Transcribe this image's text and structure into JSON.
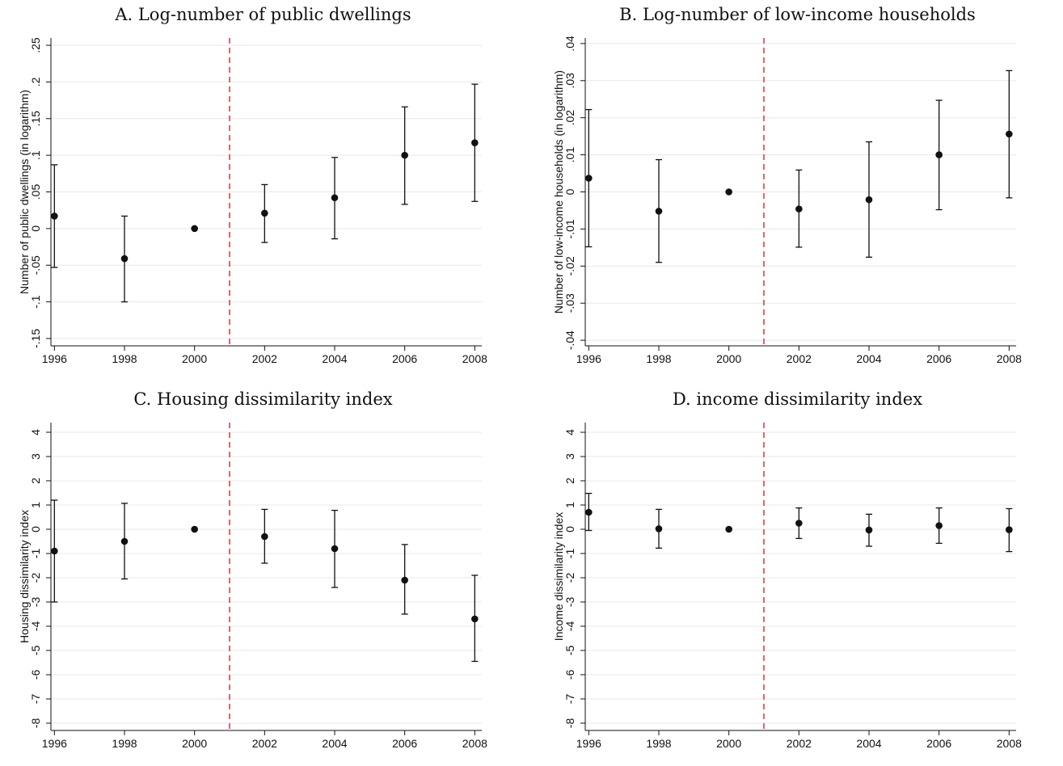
{
  "chart_data": [
    {
      "type": "scatter",
      "title": "A. Log-number of public dwellings",
      "ylabel": "Number of public dwellings (in logarithm)",
      "x": [
        1996,
        1998,
        2000,
        2002,
        2004,
        2006,
        2008
      ],
      "y": [
        0.017,
        -0.041,
        0.0,
        0.021,
        0.042,
        0.1,
        0.117
      ],
      "ci_low": [
        -0.053,
        -0.1,
        null,
        -0.019,
        -0.014,
        0.033,
        0.037
      ],
      "ci_high": [
        0.087,
        0.017,
        null,
        0.06,
        0.097,
        0.166,
        0.197
      ],
      "yticks": [
        0.25,
        0.2,
        0.15,
        0.1,
        0.05,
        0,
        -0.05,
        -0.1,
        -0.15
      ],
      "ytick_labels": [
        ".25",
        ".2",
        ".15",
        ".1",
        ".05",
        "0",
        "-.05",
        "-.1",
        "-.15"
      ],
      "xticks": [
        1996,
        1998,
        2000,
        2002,
        2004,
        2006,
        2008
      ],
      "ylim": [
        -0.16,
        0.26
      ],
      "xlim": [
        1995.9,
        2008.2
      ],
      "reference_line_x": 2001,
      "grid": true
    },
    {
      "type": "scatter",
      "title": "B. Log-number of low-income households",
      "ylabel": "Number of low-income households (in logarithm)",
      "x": [
        1996,
        1998,
        2000,
        2002,
        2004,
        2006,
        2008
      ],
      "y": [
        0.0037,
        -0.0052,
        0.0,
        -0.0046,
        -0.0021,
        0.01,
        0.0156
      ],
      "ci_low": [
        -0.0148,
        -0.019,
        null,
        -0.0149,
        -0.0176,
        -0.0048,
        -0.0016
      ],
      "ci_high": [
        0.0222,
        0.0087,
        null,
        0.0059,
        0.0135,
        0.0247,
        0.0327
      ],
      "yticks": [
        0.04,
        0.03,
        0.02,
        0.01,
        0,
        -0.01,
        -0.02,
        -0.03,
        -0.04
      ],
      "ytick_labels": [
        ".04",
        ".03",
        ".02",
        ".01",
        "0",
        "-.01",
        "-.02",
        "-.03",
        "-.04"
      ],
      "xticks": [
        1996,
        1998,
        2000,
        2002,
        2004,
        2006,
        2008
      ],
      "ylim": [
        -0.0415,
        0.0415
      ],
      "xlim": [
        1995.9,
        2008.2
      ],
      "reference_line_x": 2001,
      "grid": true
    },
    {
      "type": "scatter",
      "title": "C. Housing dissimilarity index",
      "ylabel": "Housing dissimilarity index",
      "x": [
        1996,
        1998,
        2000,
        2002,
        2004,
        2006,
        2008
      ],
      "y": [
        -0.9,
        -0.5,
        0.0,
        -0.3,
        -0.8,
        -2.1,
        -3.7
      ],
      "ci_low": [
        -3.0,
        -2.05,
        null,
        -1.4,
        -2.4,
        -3.5,
        -5.45
      ],
      "ci_high": [
        1.2,
        1.07,
        null,
        0.82,
        0.78,
        -0.63,
        -1.9
      ],
      "yticks": [
        4,
        3,
        2,
        1,
        0,
        -1,
        -2,
        -3,
        -4,
        -5,
        -6,
        -7,
        -8
      ],
      "ytick_labels": [
        "4",
        "3",
        "2",
        "1",
        "0",
        "-1",
        "-2",
        "-3",
        "-4",
        "-5",
        "-6",
        "-7",
        "-8"
      ],
      "xticks": [
        1996,
        1998,
        2000,
        2002,
        2004,
        2006,
        2008
      ],
      "ylim": [
        -8.3,
        4.4
      ],
      "xlim": [
        1995.9,
        2008.2
      ],
      "reference_line_x": 2001,
      "grid": true
    },
    {
      "type": "scatter",
      "title": "D. income dissimilarity index",
      "ylabel": "Income dissimilarity index",
      "x": [
        1996,
        1998,
        2000,
        2002,
        2004,
        2006,
        2008
      ],
      "y": [
        0.7,
        0.02,
        0.0,
        0.25,
        -0.03,
        0.15,
        -0.02
      ],
      "ci_low": [
        -0.05,
        -0.78,
        null,
        -0.38,
        -0.7,
        -0.58,
        -0.92
      ],
      "ci_high": [
        1.48,
        0.82,
        null,
        0.88,
        0.62,
        0.88,
        0.85
      ],
      "yticks": [
        4,
        3,
        2,
        1,
        0,
        -1,
        -2,
        -3,
        -4,
        -5,
        -6,
        -7,
        -8
      ],
      "ytick_labels": [
        "4",
        "3",
        "2",
        "1",
        "0",
        "-1",
        "-2",
        "-3",
        "-4",
        "-5",
        "-6",
        "-7",
        "-8"
      ],
      "xticks": [
        1996,
        1998,
        2000,
        2002,
        2004,
        2006,
        2008
      ],
      "ylim": [
        -8.3,
        4.4
      ],
      "xlim": [
        1995.9,
        2008.2
      ],
      "reference_line_x": 2001,
      "grid": true
    }
  ]
}
